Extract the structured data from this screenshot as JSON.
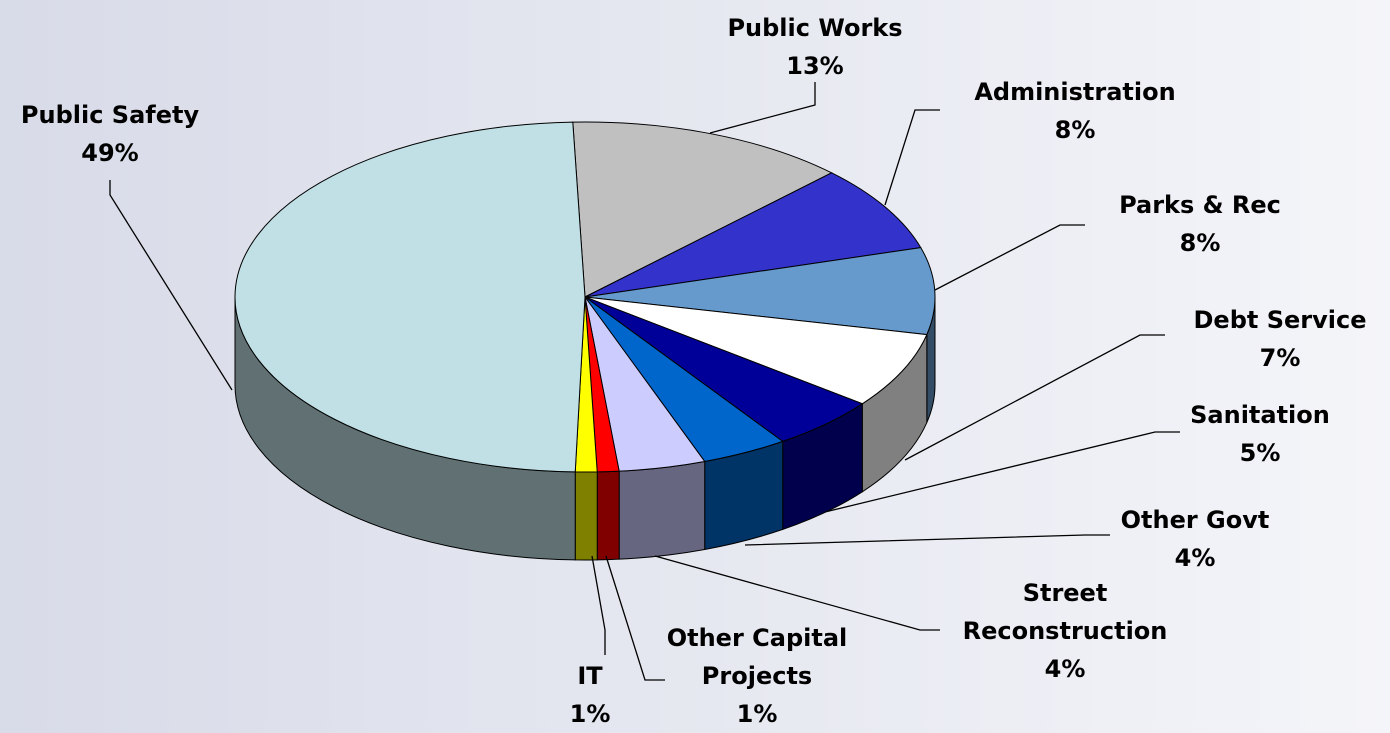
{
  "chart_data": {
    "type": "pie3d",
    "categories": [
      "Public Works",
      "Administration",
      "Parks & Rec",
      "Debt Service",
      "Sanitation",
      "Other Govt",
      "Street Reconstruction",
      "Other Capital Projects",
      "IT",
      "Public Safety"
    ],
    "values": [
      13,
      8,
      8,
      7,
      5,
      4,
      4,
      1,
      1,
      49
    ],
    "value_labels": [
      "13%",
      "8%",
      "8%",
      "7%",
      "5%",
      "4%",
      "4%",
      "1%",
      "1%",
      "49%"
    ],
    "colors": [
      "#c0c0c0",
      "#3333cc",
      "#6699cc",
      "#ffffff",
      "#000099",
      "#0066cc",
      "#ccccff",
      "#ff0000",
      "#ffff00",
      "#c0e0e6"
    ]
  }
}
